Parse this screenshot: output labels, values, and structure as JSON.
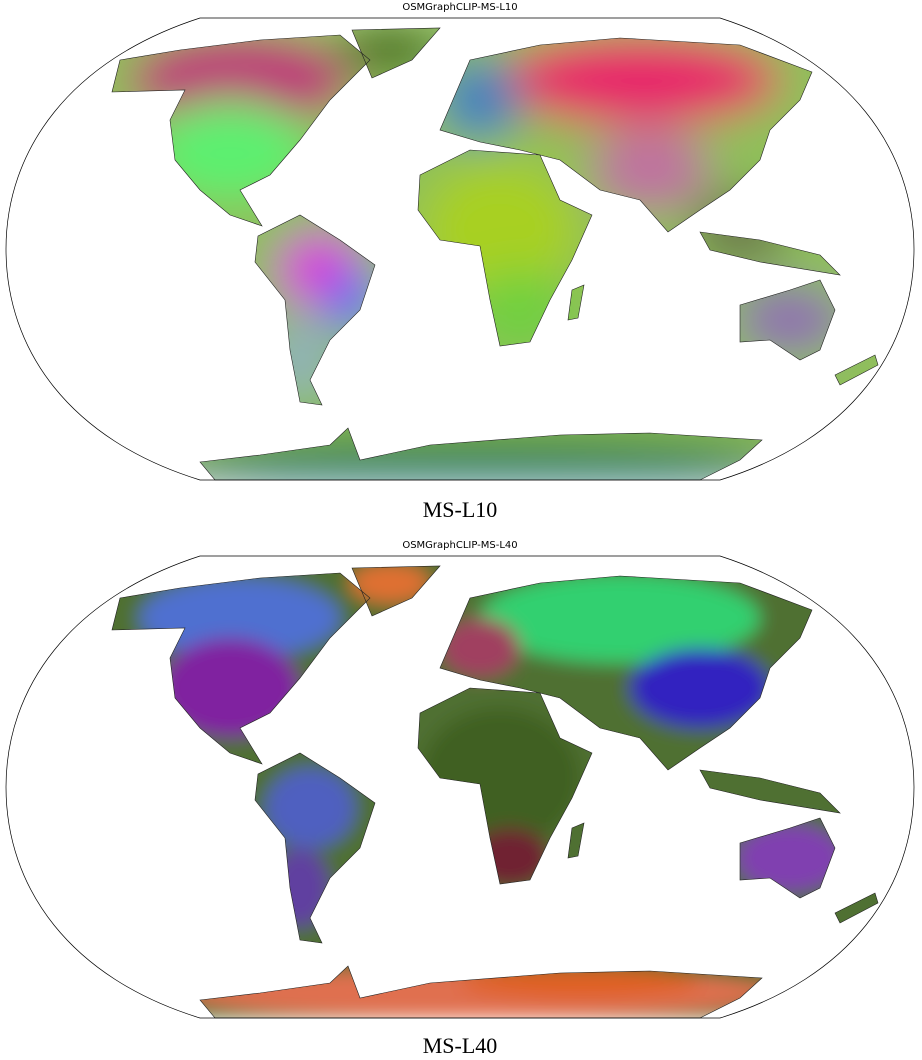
{
  "panels": [
    {
      "title": "OSMGraphCLIP-MS-L10",
      "caption": "MS-L10"
    },
    {
      "title": "OSMGraphCLIP-MS-L40",
      "caption": "MS-L40"
    }
  ]
}
